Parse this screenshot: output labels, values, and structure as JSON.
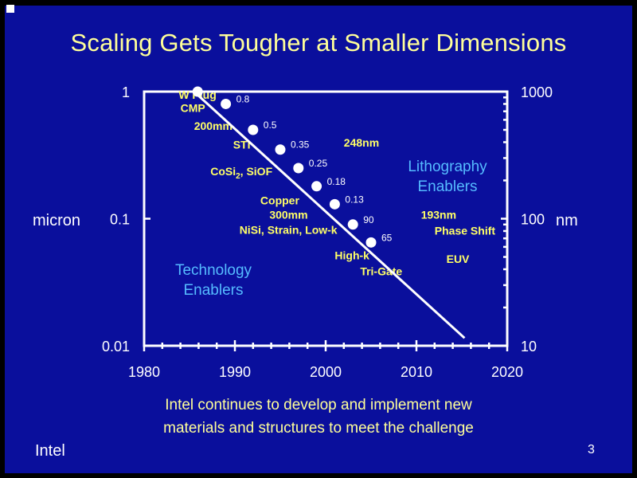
{
  "slide": {
    "title": "Scaling Gets Tougher at Smaller Dimensions",
    "caption_line1": "Intel continues to develop and implement new",
    "caption_line2": "materials and structures to meet the challenge",
    "footer_brand": "Intel",
    "page_number": "3",
    "colors": {
      "background": "#0a0f9c",
      "title": "#ffff99",
      "annotation": "#ffff66",
      "enablers": "#55bbff"
    }
  },
  "chart_data": {
    "type": "line",
    "xlabel": "",
    "ylabel": "micron",
    "y2label": "nm",
    "xlim": [
      1980,
      2020
    ],
    "ylim": [
      0.01,
      1
    ],
    "yscale": "log",
    "x_ticks": [
      "1980",
      "1990",
      "2000",
      "2010",
      "2020"
    ],
    "y_ticks_left": [
      "1",
      "0.1",
      "0.01"
    ],
    "y_ticks_right": [
      "1000",
      "100",
      "10"
    ],
    "trend_line": {
      "x": [
        1985.5,
        2015.3
      ],
      "y": [
        1.0,
        0.0115
      ]
    },
    "nodes": [
      {
        "year": 1985.9,
        "micron": 1.0,
        "label": ""
      },
      {
        "year": 1989.0,
        "micron": 0.8,
        "label": "0.8"
      },
      {
        "year": 1992.0,
        "micron": 0.5,
        "label": "0.5"
      },
      {
        "year": 1995.0,
        "micron": 0.35,
        "label": "0.35"
      },
      {
        "year": 1997.0,
        "micron": 0.25,
        "label": "0.25"
      },
      {
        "year": 1999.0,
        "micron": 0.18,
        "label": "0.18"
      },
      {
        "year": 2001.0,
        "micron": 0.13,
        "label": "0.13"
      },
      {
        "year": 2003.0,
        "micron": 0.09,
        "label": "90"
      },
      {
        "year": 2005.0,
        "micron": 0.065,
        "label": "65"
      }
    ],
    "annotations": {
      "technology": [
        {
          "text": "W Plug",
          "x": 1983.8,
          "y": 0.88
        },
        {
          "text": "CMP",
          "x": 1984.0,
          "y": 0.69
        },
        {
          "text": "200mm",
          "x": 1985.5,
          "y": 0.5
        },
        {
          "text": "STI",
          "x": 1989.8,
          "y": 0.355
        },
        {
          "text": "CoSi",
          "sub": "2",
          "tail": ", SiOF",
          "x": 1987.3,
          "y": 0.22
        },
        {
          "text": "Copper",
          "x": 1992.8,
          "y": 0.13
        },
        {
          "text": "300mm",
          "x": 1993.8,
          "y": 0.1
        },
        {
          "text": "NiSi, Strain, Low-k",
          "x": 1990.5,
          "y": 0.076
        },
        {
          "text": "High-k",
          "x": 2001.0,
          "y": 0.048
        },
        {
          "text": "Tri-Gate",
          "x": 2003.8,
          "y": 0.036
        }
      ],
      "lithography": [
        {
          "text": "248nm",
          "x": 2002.0,
          "y": 0.37
        },
        {
          "text": "193nm",
          "x": 2010.5,
          "y": 0.1
        },
        {
          "text": "Phase Shift",
          "x": 2012.0,
          "y": 0.075
        },
        {
          "text": "EUV",
          "x": 2013.3,
          "y": 0.045
        }
      ]
    },
    "enablers": {
      "technology": [
        "Technology",
        "Enablers"
      ],
      "lithography": [
        "Lithography",
        "Enablers"
      ]
    }
  }
}
